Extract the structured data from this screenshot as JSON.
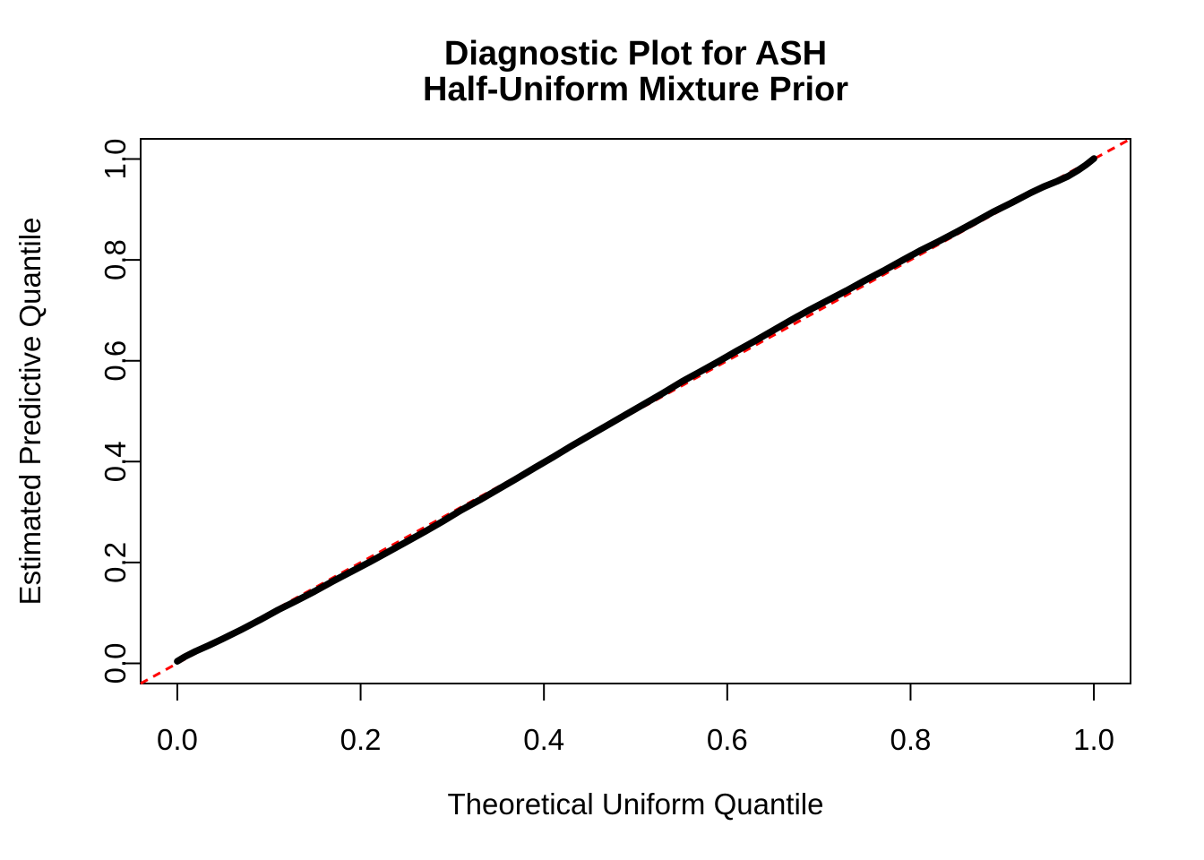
{
  "chart_data": {
    "type": "scatter",
    "title": "Diagnostic Plot for ASH\nHalf-Uniform Mixture Prior",
    "title_line1": "Diagnostic Plot for ASH",
    "title_line2": "Half-Uniform Mixture Prior",
    "xlabel": "Theoretical Uniform Quantile",
    "ylabel": "Estimated Predictive Quantile",
    "xlim": [
      -0.04,
      1.04
    ],
    "ylim": [
      -0.04,
      1.04
    ],
    "x_ticks": [
      0.0,
      0.2,
      0.4,
      0.6,
      0.8,
      1.0
    ],
    "x_tick_labels": [
      "0.0",
      "0.2",
      "0.4",
      "0.6",
      "0.8",
      "1.0"
    ],
    "y_ticks": [
      0.0,
      0.2,
      0.4,
      0.6,
      0.8,
      1.0
    ],
    "y_tick_labels": [
      "0.0",
      "0.2",
      "0.4",
      "0.6",
      "0.8",
      "1.0"
    ],
    "grid": false,
    "legend": "none",
    "colors": {
      "points": "#000000",
      "reference_line": "#FF0000",
      "axis": "#000000",
      "background": "#FFFFFF"
    },
    "reference_line": {
      "type": "abline",
      "intercept": 0,
      "slope": 1,
      "style": "dashed",
      "color": "#FF0000"
    },
    "series": [
      {
        "name": "estimated-vs-theoretical-quantile",
        "marker": "filled-circle",
        "color": "#000000",
        "points": [
          [
            0.0,
            0.004
          ],
          [
            0.008,
            0.013
          ],
          [
            0.02,
            0.024
          ],
          [
            0.035,
            0.036
          ],
          [
            0.05,
            0.049
          ],
          [
            0.07,
            0.067
          ],
          [
            0.09,
            0.086
          ],
          [
            0.11,
            0.106
          ],
          [
            0.13,
            0.124
          ],
          [
            0.15,
            0.143
          ],
          [
            0.17,
            0.163
          ],
          [
            0.19,
            0.182
          ],
          [
            0.21,
            0.201
          ],
          [
            0.23,
            0.221
          ],
          [
            0.25,
            0.241
          ],
          [
            0.27,
            0.261
          ],
          [
            0.29,
            0.282
          ],
          [
            0.31,
            0.304
          ],
          [
            0.33,
            0.324
          ],
          [
            0.35,
            0.345
          ],
          [
            0.37,
            0.366
          ],
          [
            0.39,
            0.388
          ],
          [
            0.41,
            0.409
          ],
          [
            0.43,
            0.431
          ],
          [
            0.45,
            0.452
          ],
          [
            0.47,
            0.473
          ],
          [
            0.49,
            0.494
          ],
          [
            0.51,
            0.515
          ],
          [
            0.53,
            0.536
          ],
          [
            0.55,
            0.558
          ],
          [
            0.57,
            0.578
          ],
          [
            0.59,
            0.598
          ],
          [
            0.61,
            0.619
          ],
          [
            0.63,
            0.639
          ],
          [
            0.65,
            0.66
          ],
          [
            0.67,
            0.681
          ],
          [
            0.69,
            0.701
          ],
          [
            0.71,
            0.72
          ],
          [
            0.73,
            0.739
          ],
          [
            0.75,
            0.759
          ],
          [
            0.77,
            0.778
          ],
          [
            0.79,
            0.798
          ],
          [
            0.81,
            0.818
          ],
          [
            0.83,
            0.836
          ],
          [
            0.85,
            0.855
          ],
          [
            0.87,
            0.875
          ],
          [
            0.89,
            0.895
          ],
          [
            0.91,
            0.913
          ],
          [
            0.93,
            0.932
          ],
          [
            0.945,
            0.945
          ],
          [
            0.96,
            0.956
          ],
          [
            0.972,
            0.966
          ],
          [
            0.983,
            0.978
          ],
          [
            0.991,
            0.988
          ],
          [
            0.996,
            0.995
          ],
          [
            1.0,
            1.001
          ]
        ]
      }
    ]
  }
}
